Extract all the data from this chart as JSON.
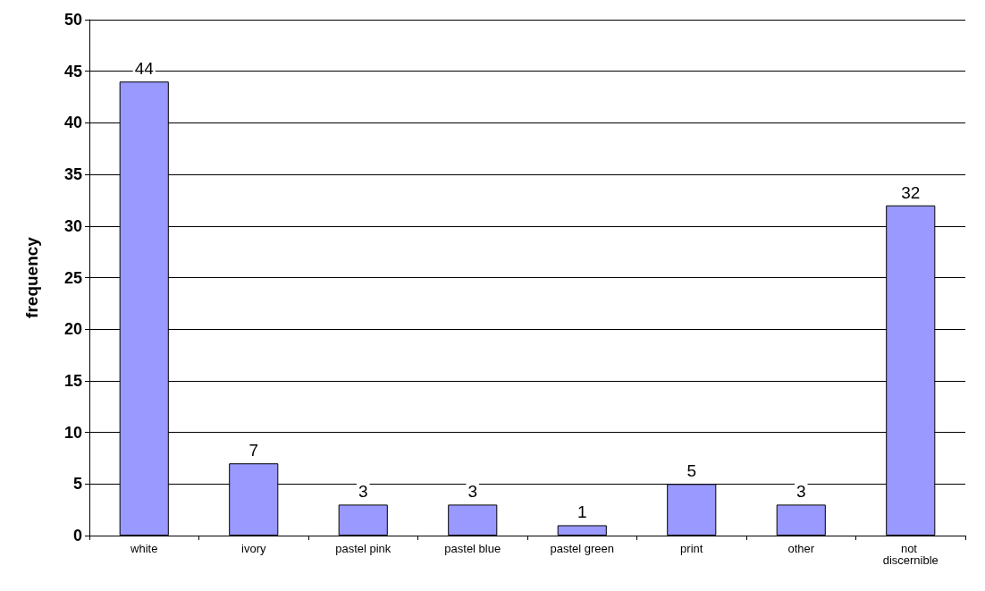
{
  "chart_data": {
    "type": "bar",
    "ylabel": "frequency",
    "categories": [
      "white",
      "ivory",
      "pastel pink",
      "pastel blue",
      "pastel green",
      "print",
      "other",
      "not discernible"
    ],
    "values": [
      44,
      7,
      3,
      3,
      1,
      5,
      3,
      32
    ],
    "color": "#9999ff",
    "ylim": [
      0,
      50
    ],
    "yticks": [
      0,
      5,
      10,
      15,
      20,
      25,
      30,
      35,
      40,
      45,
      50
    ],
    "grid": "y",
    "data_labels": true
  }
}
